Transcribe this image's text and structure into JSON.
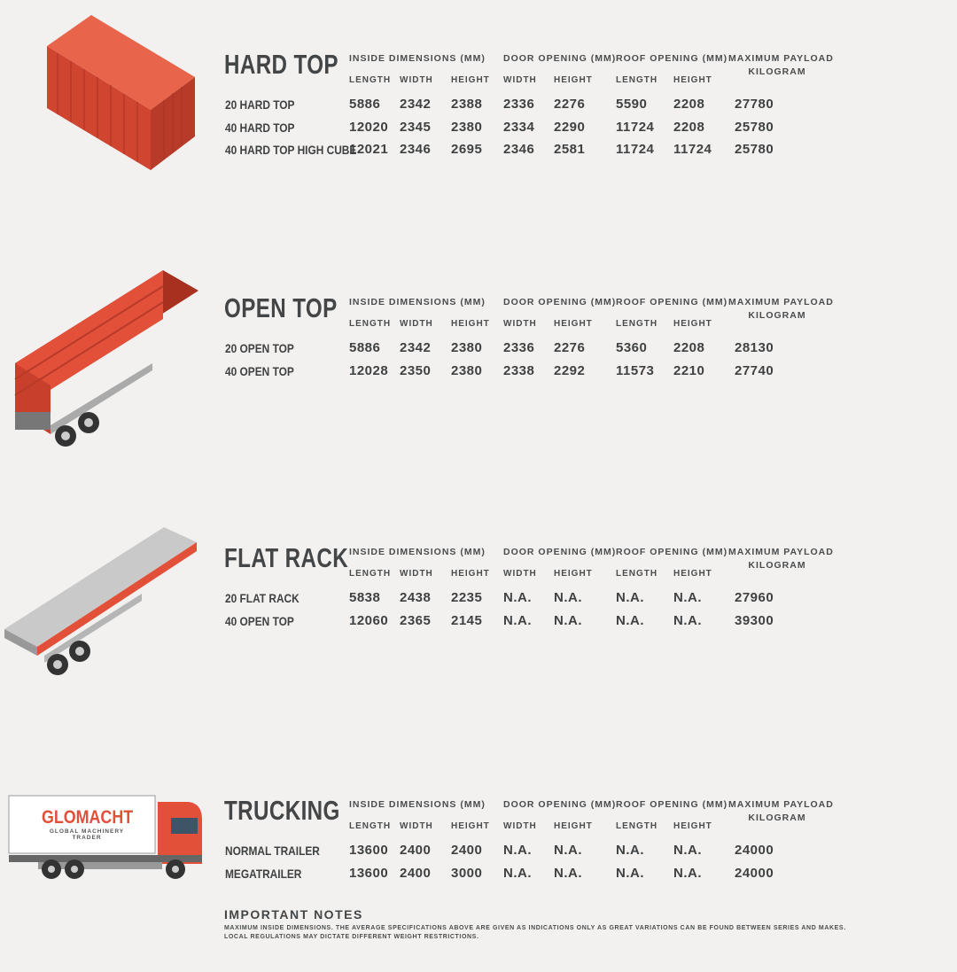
{
  "columns": {
    "inside": "INSIDE DIMENSIONS (MM)",
    "door": "DOOR OPENING (MM)",
    "roof": "ROOF OPENING (MM)",
    "payload_line1": "MAXIMUM PAYLOAD",
    "payload_line2": "KILOGRAM",
    "sub": [
      "LENGTH",
      "WIDTH",
      "HEIGHT",
      "WIDTH",
      "HEIGHT",
      "LENGTH",
      "HEIGHT"
    ]
  },
  "colors": {
    "accent_red": "#e2503a",
    "text": "#3f4142",
    "background": "#f2f1ef"
  },
  "sections": [
    {
      "title": "HARD TOP",
      "illustration": "hard-top-container",
      "rows": [
        {
          "name": "20 HARD TOP",
          "values": [
            "5886",
            "2342",
            "2388",
            "2336",
            "2276",
            "5590",
            "2208",
            "27780"
          ]
        },
        {
          "name": "40 HARD TOP",
          "values": [
            "12020",
            "2345",
            "2380",
            "2334",
            "2290",
            "11724",
            "2208",
            "25780"
          ]
        },
        {
          "name": "40 HARD TOP HIGH CUBE",
          "values": [
            "12021",
            "2346",
            "2695",
            "2346",
            "2581",
            "11724",
            "11724",
            "25780"
          ]
        }
      ]
    },
    {
      "title": "OPEN TOP",
      "illustration": "open-top-trailer",
      "rows": [
        {
          "name": "20 OPEN TOP",
          "values": [
            "5886",
            "2342",
            "2380",
            "2336",
            "2276",
            "5360",
            "2208",
            "28130"
          ]
        },
        {
          "name": "40 OPEN TOP",
          "values": [
            "12028",
            "2350",
            "2380",
            "2338",
            "2292",
            "11573",
            "2210",
            "27740"
          ]
        }
      ]
    },
    {
      "title": "FLAT RACK",
      "illustration": "flat-rack-trailer",
      "rows": [
        {
          "name": "20 FLAT RACK",
          "values": [
            "5838",
            "2438",
            "2235",
            "N.A.",
            "N.A.",
            "N.A.",
            "N.A.",
            "27960"
          ]
        },
        {
          "name": "40 OPEN TOP",
          "values": [
            "12060",
            "2365",
            "2145",
            "N.A.",
            "N.A.",
            "N.A.",
            "N.A.",
            "39300"
          ]
        }
      ]
    },
    {
      "title": "TRUCKING",
      "illustration": "truck",
      "rows": [
        {
          "name": "NORMAL TRAILER",
          "values": [
            "13600",
            "2400",
            "2400",
            "N.A.",
            "N.A.",
            "N.A.",
            "N.A.",
            "24000"
          ]
        },
        {
          "name": "MEGATRAILER",
          "values": [
            "13600",
            "2400",
            "3000",
            "N.A.",
            "N.A.",
            "N.A.",
            "N.A.",
            "24000"
          ]
        }
      ]
    }
  ],
  "logo": {
    "name": "GLOMACHT",
    "tagline": "GLOBAL MACHINERY TRADER"
  },
  "notes": {
    "heading": "IMPORTANT NOTES",
    "line1": "MAXIMUM INSIDE DIMENSIONS. THE AVERAGE SPECIFICATIONS ABOVE ARE GIVEN AS INDICATIONS ONLY AS GREAT VARIATIONS CAN BE FOUND BETWEEN SERIES AND MAKES.",
    "line2": "LOCAL REGULATIONS MAY DICTATE DIFFERENT WEIGHT RESTRICTIONS."
  }
}
